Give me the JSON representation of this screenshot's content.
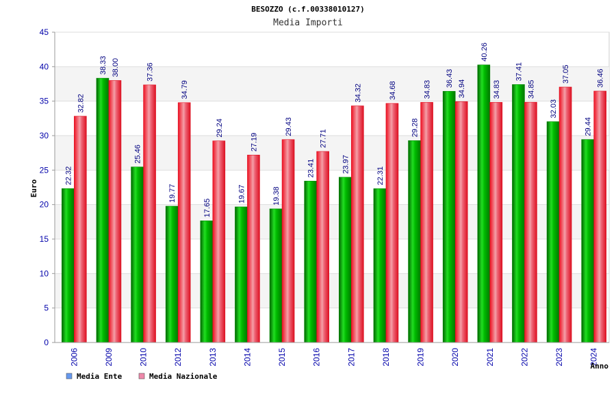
{
  "chart_data": {
    "type": "bar",
    "title": "BESOZZO (c.f.00338010127)",
    "subtitle": "Media Importi",
    "xlabel": "Anno",
    "ylabel": "Euro",
    "ylim": [
      0,
      45
    ],
    "yticks": [
      0,
      5,
      10,
      15,
      20,
      25,
      30,
      35,
      40,
      45
    ],
    "grid": true,
    "legend_position": "bottom-left",
    "categories": [
      "2006",
      "2009",
      "2010",
      "2012",
      "2013",
      "2014",
      "2015",
      "2016",
      "2017",
      "2018",
      "2019",
      "2020",
      "2021",
      "2022",
      "2023",
      "2024"
    ],
    "series": [
      {
        "name": "Media Ente",
        "color": "#00aa00",
        "legend_color": "#6699ee",
        "values": [
          22.32,
          38.33,
          25.46,
          19.77,
          17.65,
          19.67,
          19.38,
          23.41,
          23.97,
          22.31,
          29.28,
          36.43,
          40.26,
          37.41,
          32.03,
          29.44
        ],
        "labels": [
          "22.32",
          "38.33",
          "25.46",
          "19.77",
          "17.65",
          "19.67",
          "19.38",
          "23.41",
          "23.97",
          "22.31",
          "29.28",
          "36.43",
          "40.26",
          "37.41",
          "32.03",
          "29.44"
        ]
      },
      {
        "name": "Media Nazionale",
        "color": "#ee2233",
        "legend_color": "#ee88aa",
        "values": [
          32.82,
          38.0,
          37.36,
          34.79,
          29.24,
          27.19,
          29.43,
          27.71,
          34.32,
          34.68,
          34.83,
          34.94,
          34.83,
          34.85,
          37.05,
          36.46
        ],
        "labels": [
          "32.82",
          "38.00",
          "37.36",
          "34.79",
          "29.24",
          "27.19",
          "29.43",
          "27.71",
          "34.32",
          "34.68",
          "34.83",
          "34.94",
          "34.83",
          "34.85",
          "37.05",
          "36.46"
        ]
      }
    ]
  }
}
